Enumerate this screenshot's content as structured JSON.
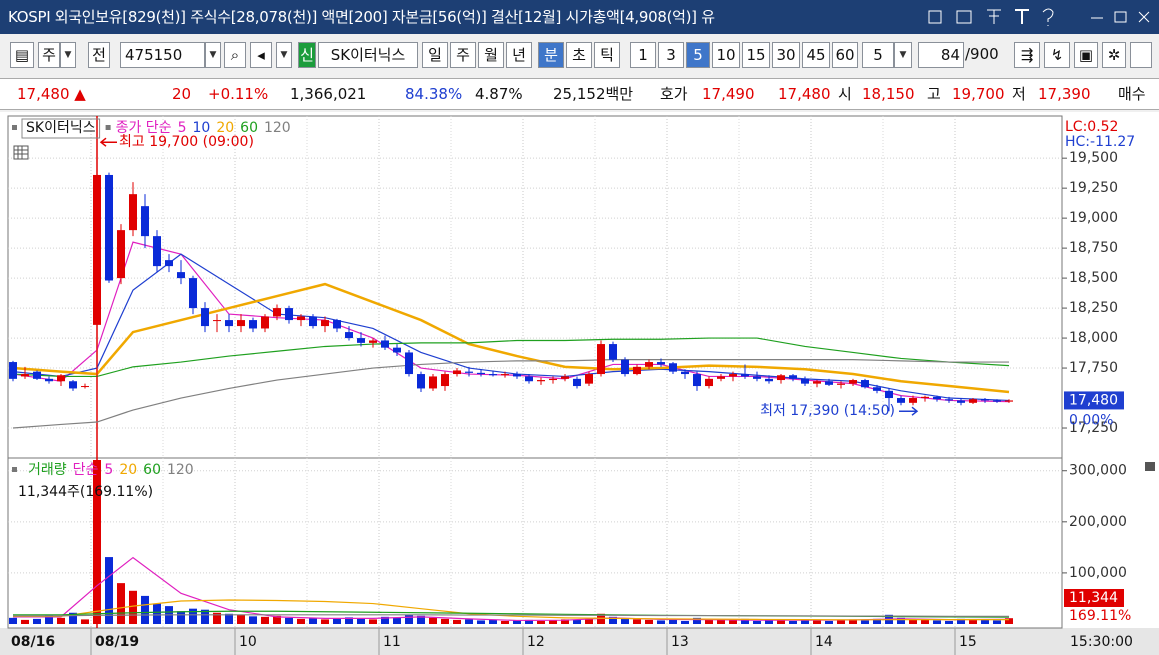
{
  "title_bar": {
    "text": "KOSPI 외국인보유[829(천)] 주식수[28,078(천)] 액면[200] 자본금[56(억)] 결산[12월] 시가총액[4,908(억)] 유"
  },
  "toolbar": {
    "items": [
      "주",
      "전",
      "475150",
      "신",
      "SK이터닉스",
      "일",
      "주",
      "월",
      "년",
      "분",
      "초",
      "틱",
      "1",
      "3",
      "5",
      "10",
      "15",
      "30",
      "45",
      "60",
      "5",
      "84",
      "/900"
    ],
    "selected": [
      9,
      14
    ]
  },
  "quote": {
    "items": [
      {
        "text": "17,480 ▲",
        "color": "#e00000"
      },
      {
        "text": "20",
        "color": "#e00000"
      },
      {
        "text": "+0.11%",
        "color": "#e00000"
      },
      {
        "text": "1,366,021",
        "color": "#111111"
      },
      {
        "text": "84.38%",
        "color": "#1f3fd0"
      },
      {
        "text": "4.87%",
        "color": "#111111"
      },
      {
        "text": "25,152백만",
        "color": "#111111"
      },
      {
        "text": "호가",
        "color": "#111111"
      },
      {
        "text": "17,490",
        "color": "#e00000"
      },
      {
        "text": "17,480",
        "color": "#e00000"
      },
      {
        "text": "시",
        "color": "#111111"
      },
      {
        "text": "18,150",
        "color": "#e00000"
      },
      {
        "text": "고",
        "color": "#111111"
      },
      {
        "text": "19,700",
        "color": "#e00000"
      },
      {
        "text": "저",
        "color": "#111111"
      },
      {
        "text": "17,390",
        "color": "#e00000"
      },
      {
        "text": "매수",
        "color": "#111111"
      }
    ]
  },
  "price_chart": {
    "type": "candlestick",
    "legend_name": "SK이터닉스",
    "ma_label": "종가 단순",
    "ylim": [
      17025,
      19835
    ],
    "yticks": [
      {
        "value": 19500,
        "label": "19,500"
      },
      {
        "value": 19250,
        "label": "19,250"
      },
      {
        "value": 19000,
        "label": "19,000"
      },
      {
        "value": 18750,
        "label": "18,750"
      },
      {
        "value": 18500,
        "label": "18,500"
      },
      {
        "value": 18250,
        "label": "18,250"
      },
      {
        "value": 18000,
        "label": "18,000"
      },
      {
        "value": 17750,
        "label": "17,750"
      },
      {
        "value": 17250,
        "label": "17,250"
      }
    ],
    "grid": true,
    "up_color": "#e00000",
    "down_color": "#0a2ad8",
    "candles": [
      [
        17800,
        17810,
        17640,
        17660
      ],
      [
        17680,
        17760,
        17660,
        17700
      ],
      [
        17720,
        17730,
        17650,
        17660
      ],
      [
        17660,
        17680,
        17620,
        17640
      ],
      [
        17640,
        17700,
        17600,
        17690
      ],
      [
        17640,
        17650,
        17560,
        17580
      ],
      [
        17600,
        17620,
        17580,
        17600
      ],
      [
        18110,
        19700,
        17620,
        19360
      ],
      [
        19360,
        19380,
        18460,
        18480
      ],
      [
        18500,
        18950,
        18450,
        18900
      ],
      [
        18900,
        19300,
        18850,
        19200
      ],
      [
        19100,
        19200,
        18750,
        18850
      ],
      [
        18850,
        18900,
        18550,
        18600
      ],
      [
        18650,
        18700,
        18550,
        18600
      ],
      [
        18550,
        18650,
        18450,
        18500
      ],
      [
        18500,
        18520,
        18200,
        18250
      ],
      [
        18250,
        18300,
        18050,
        18100
      ],
      [
        18150,
        18200,
        18050,
        18150
      ],
      [
        18150,
        18200,
        18050,
        18100
      ],
      [
        18100,
        18200,
        18050,
        18150
      ],
      [
        18150,
        18170,
        18050,
        18080
      ],
      [
        18080,
        18200,
        18050,
        18180
      ],
      [
        18180,
        18280,
        18150,
        18250
      ],
      [
        18250,
        18270,
        18120,
        18150
      ],
      [
        18150,
        18200,
        18100,
        18180
      ],
      [
        18180,
        18200,
        18080,
        18100
      ],
      [
        18100,
        18180,
        18050,
        18150
      ],
      [
        18150,
        18160,
        18050,
        18080
      ],
      [
        18050,
        18100,
        17980,
        18000
      ],
      [
        18000,
        18050,
        17930,
        17960
      ],
      [
        17960,
        18000,
        17920,
        17980
      ],
      [
        17980,
        18020,
        17900,
        17920
      ],
      [
        17920,
        17950,
        17850,
        17880
      ],
      [
        17880,
        17900,
        17680,
        17700
      ],
      [
        17700,
        17720,
        17550,
        17580
      ],
      [
        17580,
        17700,
        17560,
        17680
      ],
      [
        17600,
        17720,
        17560,
        17700
      ],
      [
        17700,
        17750,
        17680,
        17730
      ],
      [
        17720,
        17760,
        17680,
        17710
      ],
      [
        17710,
        17740,
        17680,
        17700
      ],
      [
        17700,
        17730,
        17680,
        17690
      ],
      [
        17690,
        17720,
        17670,
        17700
      ],
      [
        17700,
        17720,
        17660,
        17680
      ],
      [
        17680,
        17700,
        17620,
        17640
      ],
      [
        17640,
        17670,
        17610,
        17650
      ],
      [
        17650,
        17680,
        17620,
        17660
      ],
      [
        17660,
        17700,
        17640,
        17680
      ],
      [
        17660,
        17680,
        17580,
        17600
      ],
      [
        17620,
        17720,
        17600,
        17700
      ],
      [
        17700,
        17980,
        17680,
        17950
      ],
      [
        17950,
        17970,
        17800,
        17820
      ],
      [
        17820,
        17840,
        17680,
        17700
      ],
      [
        17700,
        17780,
        17690,
        17760
      ],
      [
        17760,
        17820,
        17740,
        17800
      ],
      [
        17800,
        17830,
        17760,
        17780
      ],
      [
        17790,
        17800,
        17700,
        17720
      ],
      [
        17720,
        17740,
        17660,
        17700
      ],
      [
        17700,
        17720,
        17560,
        17600
      ],
      [
        17600,
        17680,
        17580,
        17660
      ],
      [
        17660,
        17700,
        17640,
        17680
      ],
      [
        17680,
        17720,
        17640,
        17700
      ],
      [
        17700,
        17780,
        17660,
        17680
      ],
      [
        17680,
        17720,
        17640,
        17660
      ],
      [
        17660,
        17690,
        17620,
        17640
      ],
      [
        17650,
        17700,
        17620,
        17690
      ],
      [
        17690,
        17700,
        17640,
        17660
      ],
      [
        17660,
        17680,
        17600,
        17620
      ],
      [
        17620,
        17650,
        17590,
        17640
      ],
      [
        17640,
        17660,
        17600,
        17610
      ],
      [
        17610,
        17640,
        17580,
        17620
      ],
      [
        17620,
        17660,
        17600,
        17650
      ],
      [
        17650,
        17660,
        17580,
        17590
      ],
      [
        17590,
        17610,
        17540,
        17560
      ],
      [
        17560,
        17580,
        17390,
        17500
      ],
      [
        17500,
        17520,
        17440,
        17460
      ],
      [
        17460,
        17520,
        17440,
        17500
      ],
      [
        17500,
        17520,
        17470,
        17510
      ],
      [
        17510,
        17520,
        17470,
        17490
      ],
      [
        17490,
        17510,
        17460,
        17480
      ],
      [
        17480,
        17500,
        17440,
        17460
      ],
      [
        17460,
        17500,
        17450,
        17490
      ],
      [
        17490,
        17500,
        17460,
        17480
      ],
      [
        17480,
        17490,
        17460,
        17470
      ],
      [
        17470,
        17490,
        17460,
        17480
      ]
    ],
    "ma_x": [
      0,
      4,
      7,
      10,
      14,
      18,
      22,
      26,
      30,
      34,
      38,
      42,
      46,
      50,
      54,
      58,
      62,
      66,
      70,
      74,
      78,
      83
    ],
    "ma_series": [
      {
        "name": "5",
        "color": "#e020c0",
        "values": [
          17700,
          17640,
          17900,
          18800,
          18700,
          18200,
          18170,
          18150,
          18000,
          17750,
          17700,
          17690,
          17660,
          17780,
          17780,
          17680,
          17680,
          17650,
          17620,
          17520,
          17480,
          17470
        ]
      },
      {
        "name": "10",
        "color": "#1f3fd0",
        "values": [
          17720,
          17680,
          17750,
          18400,
          18700,
          18450,
          18200,
          18170,
          18080,
          17880,
          17750,
          17700,
          17680,
          17720,
          17740,
          17720,
          17690,
          17660,
          17640,
          17560,
          17500,
          17480
        ]
      },
      {
        "name": "20",
        "color": "#f0a800",
        "values": [
          17750,
          17720,
          17700,
          18050,
          18150,
          18250,
          18350,
          18450,
          18300,
          18150,
          17950,
          17850,
          17760,
          17740,
          17750,
          17770,
          17760,
          17740,
          17700,
          17640,
          17600,
          17550
        ]
      },
      {
        "name": "60",
        "color": "#1fa01f",
        "values": [
          17700,
          17680,
          17680,
          17760,
          17800,
          17850,
          17890,
          17930,
          17950,
          17960,
          17960,
          17980,
          17980,
          17990,
          17990,
          18000,
          18000,
          17930,
          17880,
          17830,
          17800,
          17770
        ]
      },
      {
        "name": "120",
        "color": "#808080",
        "values": [
          17250,
          17280,
          17300,
          17400,
          17500,
          17580,
          17650,
          17700,
          17750,
          17780,
          17800,
          17810,
          17810,
          17820,
          17820,
          17820,
          17820,
          17820,
          17820,
          17810,
          17800,
          17800
        ]
      }
    ],
    "high_note": "최고 19,700 (09:00)",
    "low_note": "최저 17,390 (14:50)",
    "lc": "LC:0.52",
    "hc": "HC:-11.27",
    "last_price": {
      "value": 17480,
      "label": "17,480"
    },
    "change_label": "0.00%"
  },
  "volume_chart": {
    "type": "bar",
    "title": "거래량",
    "title_color": "#1fa01f",
    "ma_label": "단순",
    "info": "11,344주(169.11%)",
    "ylim": [
      0,
      321000
    ],
    "yticks": [
      {
        "value": 300000,
        "label": "300,000"
      },
      {
        "value": 200000,
        "label": "200,000"
      },
      {
        "value": 100000,
        "label": "100,000"
      }
    ],
    "values": [
      12000,
      8000,
      10000,
      18000,
      12000,
      22000,
      9000,
      321000,
      131000,
      80000,
      65000,
      55000,
      40000,
      35000,
      25000,
      30000,
      28000,
      22000,
      20000,
      18000,
      15000,
      14000,
      16000,
      12000,
      10000,
      12000,
      9000,
      11000,
      13000,
      10000,
      9000,
      14000,
      12000,
      18000,
      16000,
      12000,
      10000,
      8000,
      9000,
      7000,
      8000,
      6000,
      7000,
      8000,
      6000,
      7000,
      9000,
      8000,
      10000,
      20000,
      14000,
      11000,
      9000,
      8000,
      7000,
      8000,
      6000,
      12000,
      9000,
      8000,
      7000,
      10000,
      6000,
      7000,
      8000,
      6000,
      9000,
      7000,
      6000,
      8000,
      9000,
      7000,
      10000,
      18000,
      12000,
      9000,
      8000,
      7000,
      6000,
      10000,
      9000,
      8000,
      7000,
      11344
    ],
    "ma_series": [
      {
        "name": "5",
        "color": "#e020c0",
        "values": [
          14000,
          14000,
          75000,
          130000,
          60000,
          28000,
          14000,
          11000,
          11000,
          14000,
          10000,
          7000,
          7500,
          12000,
          9000,
          8500,
          7500,
          7500,
          8000,
          10000,
          8500,
          9000
        ]
      },
      {
        "name": "20",
        "color": "#f0a800",
        "values": [
          15000,
          15000,
          25000,
          35000,
          45000,
          47000,
          46000,
          44000,
          40000,
          30000,
          20000,
          15000,
          12000,
          11000,
          10000,
          9500,
          9000,
          8500,
          8200,
          8500,
          8500,
          8500
        ]
      },
      {
        "name": "60",
        "color": "#1fa01f",
        "values": [
          18000,
          18000,
          20000,
          22000,
          24000,
          25000,
          25000,
          24000,
          23000,
          22000,
          21000,
          20000,
          19000,
          18000,
          17000,
          16500,
          16000,
          15500,
          15000,
          14500,
          14000,
          13500
        ]
      },
      {
        "name": "120",
        "color": "#808080",
        "values": [
          16000,
          16000,
          17000,
          17500,
          18000,
          18000,
          18000,
          18000,
          18000,
          18000,
          17500,
          17500,
          17000,
          17000,
          16500,
          16500,
          16000,
          16000,
          15500,
          15500,
          15000,
          15000
        ]
      }
    ],
    "last_volume": {
      "value": 11344,
      "label": "11,344"
    },
    "ratio_label": "169.11%"
  },
  "x_axis": {
    "days": [
      {
        "label": "08/16",
        "candles": 7
      },
      {
        "label": "08/19",
        "candles": 12
      },
      {
        "label": "10",
        "candles": 12
      },
      {
        "label": "11",
        "candles": 12
      },
      {
        "label": "12",
        "candles": 12
      },
      {
        "label": "13",
        "candles": 12
      },
      {
        "label": "14",
        "candles": 12
      },
      {
        "label": "15",
        "candles": 5
      }
    ],
    "time": "15:30:00"
  }
}
